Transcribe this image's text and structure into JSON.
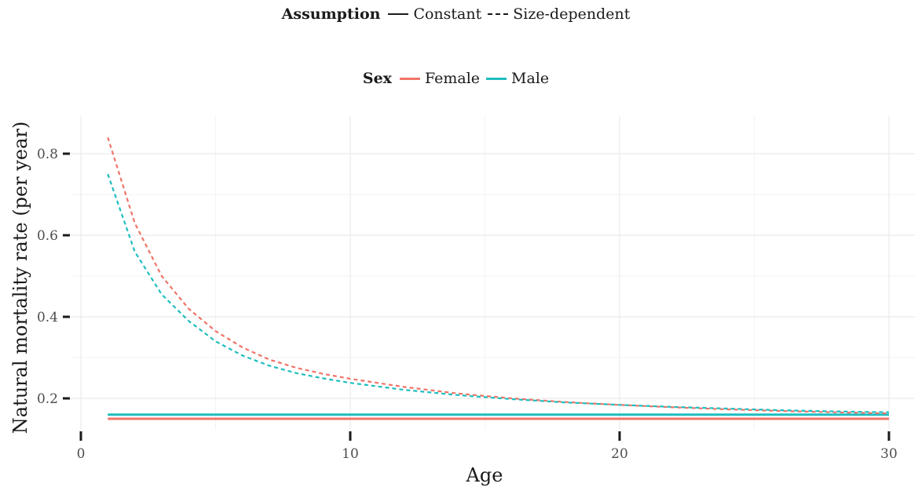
{
  "legend": {
    "assumption": {
      "title": "Assumption",
      "items": [
        {
          "label": "Constant",
          "style": "solid"
        },
        {
          "label": "Size-dependent",
          "style": "dashed"
        }
      ]
    },
    "sex": {
      "title": "Sex",
      "items": [
        {
          "label": "Female",
          "color": "#F07468"
        },
        {
          "label": "Male",
          "color": "#1FBDBF"
        }
      ]
    }
  },
  "chart_data": {
    "type": "line",
    "xlabel": "Age",
    "ylabel": "Natural mortality rate (per year)",
    "xlim": [
      0,
      30
    ],
    "ylim": [
      0.13,
      0.87
    ],
    "xticks": [
      0,
      10,
      20,
      30
    ],
    "yticks": [
      0.2,
      0.4,
      0.6,
      0.8
    ],
    "grid": true,
    "series": [
      {
        "name": "Female",
        "assumption": "Constant",
        "color": "#F07468",
        "style": "solid",
        "x": [
          1,
          30
        ],
        "y": [
          0.15,
          0.15
        ]
      },
      {
        "name": "Male",
        "assumption": "Constant",
        "color": "#1FBDBF",
        "style": "solid",
        "x": [
          1,
          30
        ],
        "y": [
          0.16,
          0.16
        ]
      },
      {
        "name": "Female",
        "assumption": "Size-dependent",
        "color": "#F07468",
        "style": "dashed",
        "x": [
          1,
          2,
          3,
          4,
          5,
          6,
          7,
          8,
          9,
          10,
          12,
          14,
          16,
          18,
          20,
          22,
          24,
          26,
          28,
          30
        ],
        "y": [
          0.84,
          0.63,
          0.5,
          0.42,
          0.365,
          0.325,
          0.295,
          0.275,
          0.26,
          0.248,
          0.228,
          0.212,
          0.2,
          0.191,
          0.184,
          0.178,
          0.173,
          0.169,
          0.166,
          0.163
        ]
      },
      {
        "name": "Male",
        "assumption": "Size-dependent",
        "color": "#1FBDBF",
        "style": "dashed",
        "x": [
          1,
          2,
          3,
          4,
          5,
          6,
          7,
          8,
          9,
          10,
          12,
          14,
          16,
          18,
          20,
          22,
          24,
          26,
          28,
          30
        ],
        "y": [
          0.75,
          0.56,
          0.455,
          0.39,
          0.34,
          0.305,
          0.28,
          0.262,
          0.249,
          0.238,
          0.221,
          0.208,
          0.198,
          0.19,
          0.184,
          0.179,
          0.175,
          0.171,
          0.168,
          0.166
        ]
      }
    ]
  }
}
